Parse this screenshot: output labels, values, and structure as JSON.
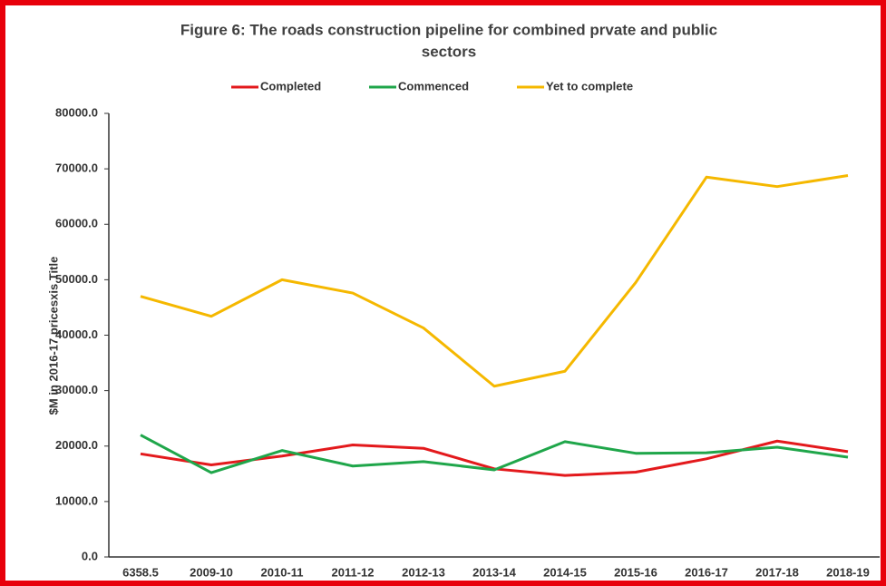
{
  "chart_data": {
    "type": "line",
    "title": "Figure 6: The roads construction pipeline for combined prvate and public",
    "title_line2": "sectors",
    "ylabel": "$M in 2016-17 pricesxis Title",
    "categories": [
      "6358.5",
      "2009-10",
      "2010-11",
      "2011-12",
      "2012-13",
      "2013-14",
      "2014-15",
      "2015-16",
      "2016-17",
      "2017-18",
      "2018-19"
    ],
    "series": [
      {
        "name": "Completed",
        "color": "#e3191c",
        "values": [
          18600,
          16600,
          18200,
          20200,
          19600,
          15900,
          14700,
          15300,
          17700,
          20900,
          19000
        ]
      },
      {
        "name": "Commenced",
        "color": "#1fa64a",
        "values": [
          22000,
          15200,
          19200,
          16400,
          17200,
          15700,
          20800,
          18700,
          18800,
          19800,
          18000
        ]
      },
      {
        "name": "Yet to complete",
        "color": "#f5b800",
        "values": [
          47000,
          43400,
          50000,
          47600,
          41300,
          30800,
          33500,
          49500,
          68500,
          66800,
          68800
        ]
      }
    ],
    "ylim": [
      0,
      80000
    ],
    "yticks": [
      {
        "value": 0,
        "label": "0.0"
      },
      {
        "value": 10000,
        "label": "10000.0"
      },
      {
        "value": 20000,
        "label": "20000.0"
      },
      {
        "value": 30000,
        "label": "30000.0"
      },
      {
        "value": 40000,
        "label": "40000.0"
      },
      {
        "value": 50000,
        "label": "50000.0"
      },
      {
        "value": 60000,
        "label": "60000.0"
      },
      {
        "value": 70000,
        "label": "70000.0"
      },
      {
        "value": 80000,
        "label": "80000.0"
      }
    ],
    "legend": "top"
  }
}
